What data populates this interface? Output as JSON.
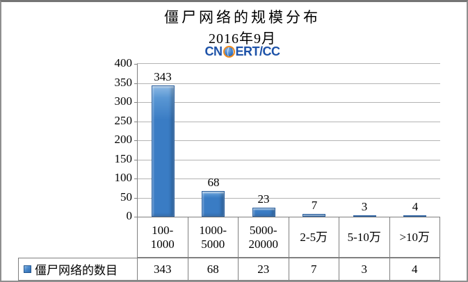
{
  "header": {
    "title": "僵尸网络的规模分布",
    "subtitle": "2016年9月",
    "logo_left": "CN",
    "logo_right": "ERT/CC"
  },
  "chart_data": {
    "type": "bar",
    "title": "僵尸网络的规模分布",
    "subtitle": "2016年9月",
    "categories": [
      "100-1000",
      "1000-5000",
      "5000-20000",
      "2-5万",
      "5-10万",
      ">10万"
    ],
    "categories_display": [
      "100-\n1000",
      "1000-\n5000",
      "5000-\n20000",
      "2-5万",
      "5-10万",
      ">10万"
    ],
    "series": [
      {
        "name": "僵尸网络的数目",
        "values": [
          343,
          68,
          23,
          7,
          3,
          4
        ]
      }
    ],
    "xlabel": "",
    "ylabel": "",
    "ylim": [
      0,
      400
    ],
    "ytick_interval": 50,
    "grid": true,
    "legend_position": "bottom-data-table",
    "bar_color": "#3A7CC4"
  },
  "colors": {
    "bar_fill": "#3A7CC4",
    "bar_border": "#2A5F9E",
    "logo_blue": "#1D52A8",
    "logo_orange": "#F28C1E",
    "gridline": "#B3B3B3",
    "table_border": "#7F7F7F",
    "frame_border": "#8F8F8F"
  }
}
